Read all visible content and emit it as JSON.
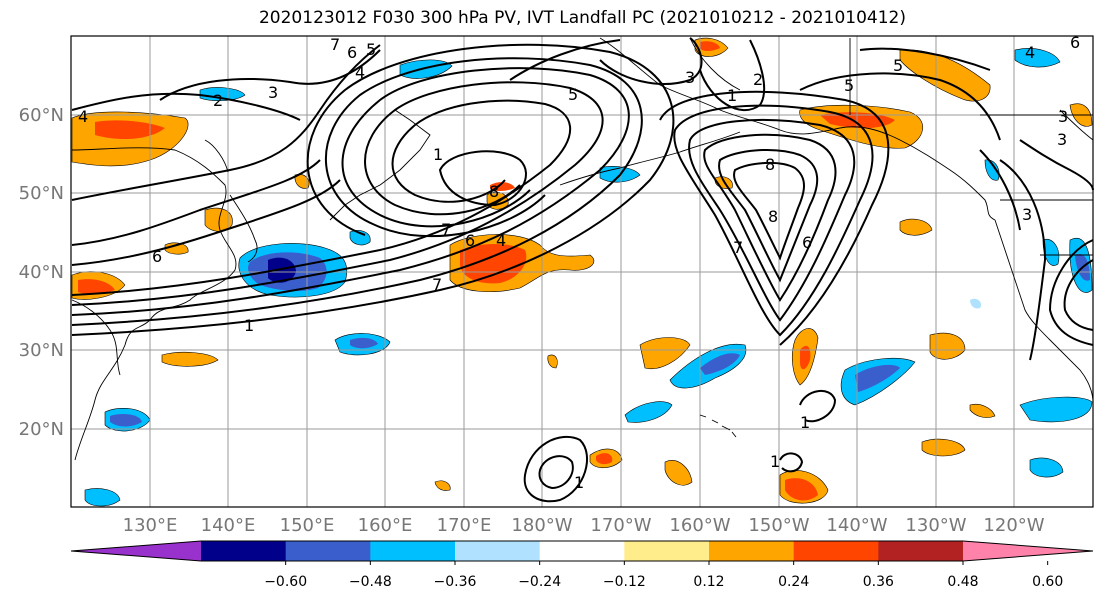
{
  "title": "2020123012 F030 300 hPa PV, IVT Landfall PC (2021010212 - 2021010412)",
  "lat_labels": [
    "60°N",
    "50°N",
    "40°N",
    "30°N",
    "20°N"
  ],
  "lon_labels": [
    "130°E",
    "140°E",
    "150°E",
    "160°E",
    "170°E",
    "180°W",
    "170°W",
    "160°W",
    "150°W",
    "140°W",
    "130°W",
    "120°W"
  ],
  "colorbar": {
    "colors": [
      "#9932CC",
      "#00008B",
      "#3A5FCD",
      "#00BFFF",
      "#B0E2FF",
      "#FFFFFF",
      "#FFEC8B",
      "#FFA500",
      "#FF4500",
      "#B22222",
      "#FF82AB"
    ],
    "tick_labels": [
      "−0.60",
      "−0.48",
      "−0.36",
      "−0.24",
      "−0.12",
      "0.12",
      "0.24",
      "0.36",
      "0.48",
      "0.60"
    ]
  },
  "contour_labels": [
    "7",
    "6",
    "5",
    "4",
    "3",
    "2",
    "1",
    "8",
    "6",
    "7",
    "6",
    "4",
    "7",
    "1",
    "5",
    "3",
    "2",
    "1",
    "5",
    "8",
    "8",
    "7",
    "6",
    "5",
    "4",
    "3",
    "1",
    "1",
    "1",
    "3",
    "6",
    "4",
    "3"
  ]
}
